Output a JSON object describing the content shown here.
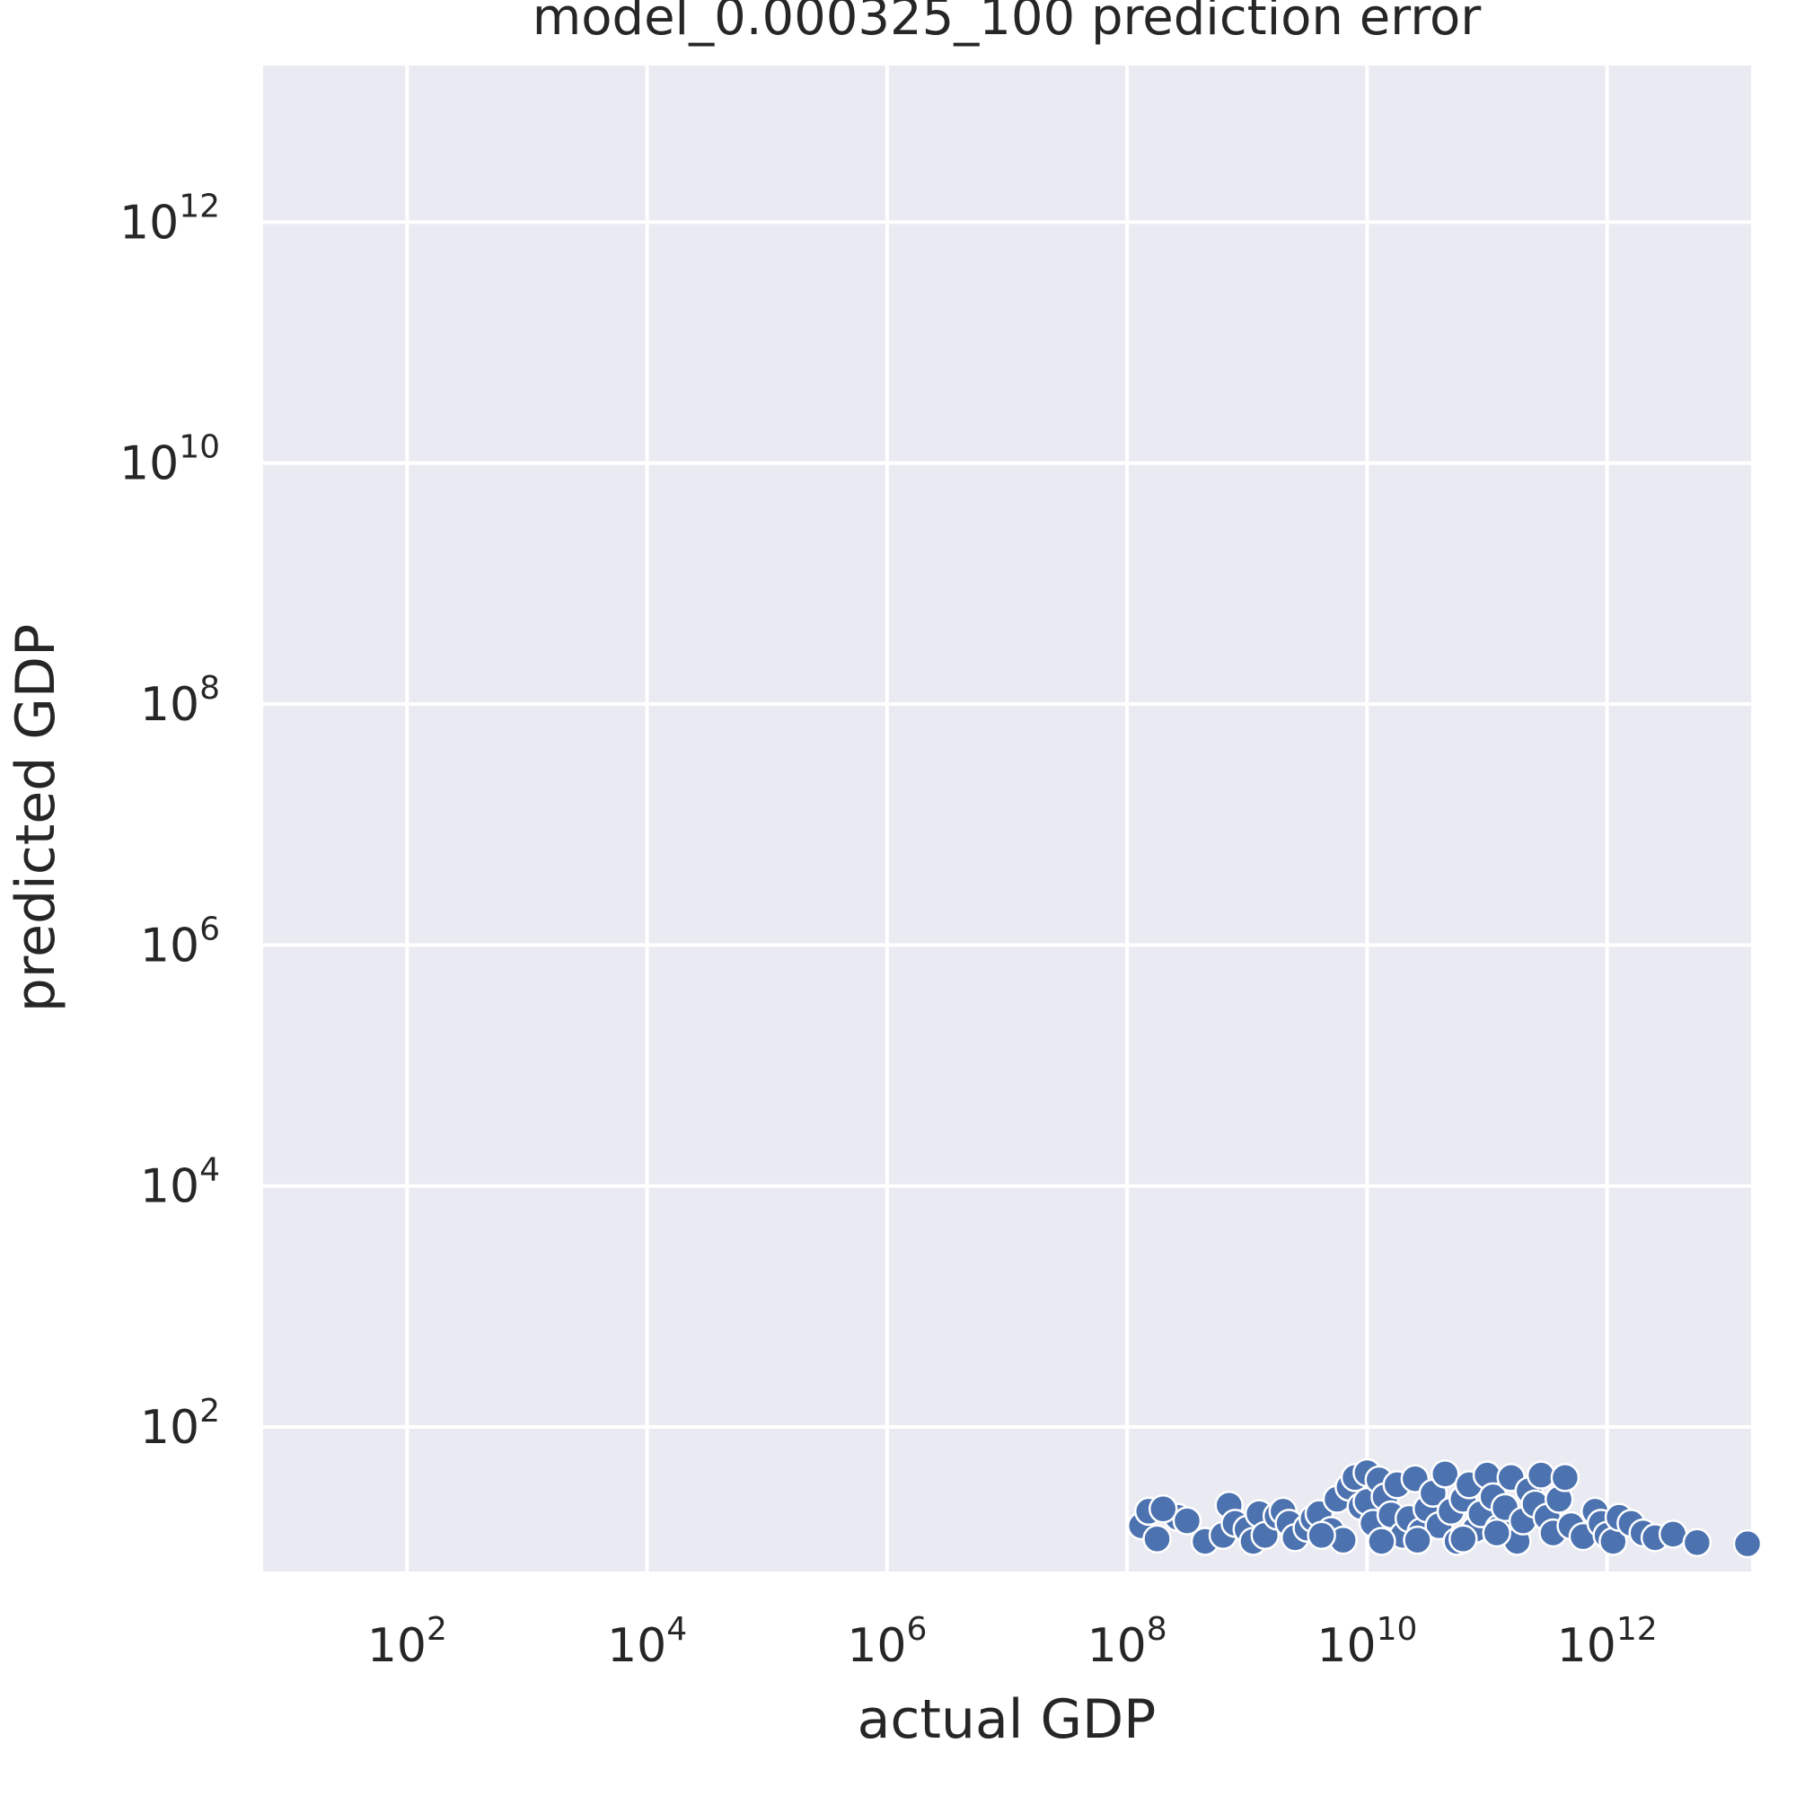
{
  "chart_data": {
    "type": "scatter",
    "title": "model_0.000325_100 prediction error",
    "xlabel": "actual GDP",
    "ylabel": "predicted GDP",
    "xscale": "log",
    "yscale": "log",
    "xlim_log10": [
      0.8,
      13.2
    ],
    "ylim_log10": [
      0.8,
      13.3
    ],
    "xticks": [
      {
        "base": "10",
        "exp": "2",
        "value": 2
      },
      {
        "base": "10",
        "exp": "4",
        "value": 4
      },
      {
        "base": "10",
        "exp": "6",
        "value": 6
      },
      {
        "base": "10",
        "exp": "8",
        "value": 8
      },
      {
        "base": "10",
        "exp": "10",
        "value": 10
      },
      {
        "base": "10",
        "exp": "12",
        "value": 12
      }
    ],
    "yticks": [
      {
        "base": "10",
        "exp": "2",
        "value": 2
      },
      {
        "base": "10",
        "exp": "4",
        "value": 4
      },
      {
        "base": "10",
        "exp": "6",
        "value": 6
      },
      {
        "base": "10",
        "exp": "8",
        "value": 8
      },
      {
        "base": "10",
        "exp": "10",
        "value": 10
      },
      {
        "base": "10",
        "exp": "12",
        "value": 12
      }
    ],
    "grid": true,
    "background": "#eaeaf2",
    "point_color": "#4c72b0",
    "series": [
      {
        "points_log10": [
          [
            8.42,
            1.25
          ],
          [
            8.12,
            1.18
          ],
          [
            8.18,
            1.3
          ],
          [
            8.25,
            1.07
          ],
          [
            8.3,
            1.32
          ],
          [
            8.5,
            1.22
          ],
          [
            8.65,
            1.05
          ],
          [
            8.8,
            1.1
          ],
          [
            8.85,
            1.35
          ],
          [
            8.9,
            1.2
          ],
          [
            9.0,
            1.15
          ],
          [
            9.05,
            1.05
          ],
          [
            9.1,
            1.28
          ],
          [
            9.15,
            1.1
          ],
          [
            9.25,
            1.26
          ],
          [
            9.3,
            1.3
          ],
          [
            9.35,
            1.2
          ],
          [
            9.4,
            1.08
          ],
          [
            9.5,
            1.16
          ],
          [
            9.55,
            1.24
          ],
          [
            9.6,
            1.28
          ],
          [
            9.7,
            1.14
          ],
          [
            9.75,
            1.4
          ],
          [
            9.8,
            1.06
          ],
          [
            9.85,
            1.5
          ],
          [
            9.9,
            1.58
          ],
          [
            9.95,
            1.34
          ],
          [
            10.0,
            1.38
          ],
          [
            10.0,
            1.62
          ],
          [
            10.05,
            1.2
          ],
          [
            10.1,
            1.56
          ],
          [
            10.15,
            1.42
          ],
          [
            10.2,
            1.27
          ],
          [
            10.25,
            1.52
          ],
          [
            10.3,
            1.1
          ],
          [
            10.35,
            1.24
          ],
          [
            10.4,
            1.57
          ],
          [
            10.45,
            1.13
          ],
          [
            10.5,
            1.32
          ],
          [
            10.55,
            1.45
          ],
          [
            10.6,
            1.18
          ],
          [
            10.65,
            1.61
          ],
          [
            10.7,
            1.3
          ],
          [
            10.75,
            1.05
          ],
          [
            10.8,
            1.4
          ],
          [
            10.85,
            1.52
          ],
          [
            10.9,
            1.15
          ],
          [
            10.95,
            1.28
          ],
          [
            11.0,
            1.6
          ],
          [
            11.05,
            1.42
          ],
          [
            11.1,
            1.16
          ],
          [
            11.15,
            1.33
          ],
          [
            11.2,
            1.58
          ],
          [
            11.25,
            1.05
          ],
          [
            11.3,
            1.22
          ],
          [
            11.35,
            1.47
          ],
          [
            11.4,
            1.36
          ],
          [
            11.45,
            1.6
          ],
          [
            11.5,
            1.25
          ],
          [
            11.55,
            1.12
          ],
          [
            11.6,
            1.4
          ],
          [
            11.65,
            1.58
          ],
          [
            11.7,
            1.18
          ],
          [
            11.8,
            1.09
          ],
          [
            11.9,
            1.3
          ],
          [
            11.95,
            1.2
          ],
          [
            12.0,
            1.1
          ],
          [
            12.05,
            1.05
          ],
          [
            12.1,
            1.25
          ],
          [
            12.2,
            1.2
          ],
          [
            12.3,
            1.12
          ],
          [
            12.4,
            1.08
          ],
          [
            12.55,
            1.11
          ],
          [
            12.75,
            1.04
          ],
          [
            13.2,
            1.03
          ],
          [
            9.62,
            1.1
          ],
          [
            10.12,
            1.05
          ],
          [
            10.42,
            1.06
          ],
          [
            10.8,
            1.07
          ],
          [
            11.08,
            1.12
          ]
        ]
      }
    ]
  }
}
